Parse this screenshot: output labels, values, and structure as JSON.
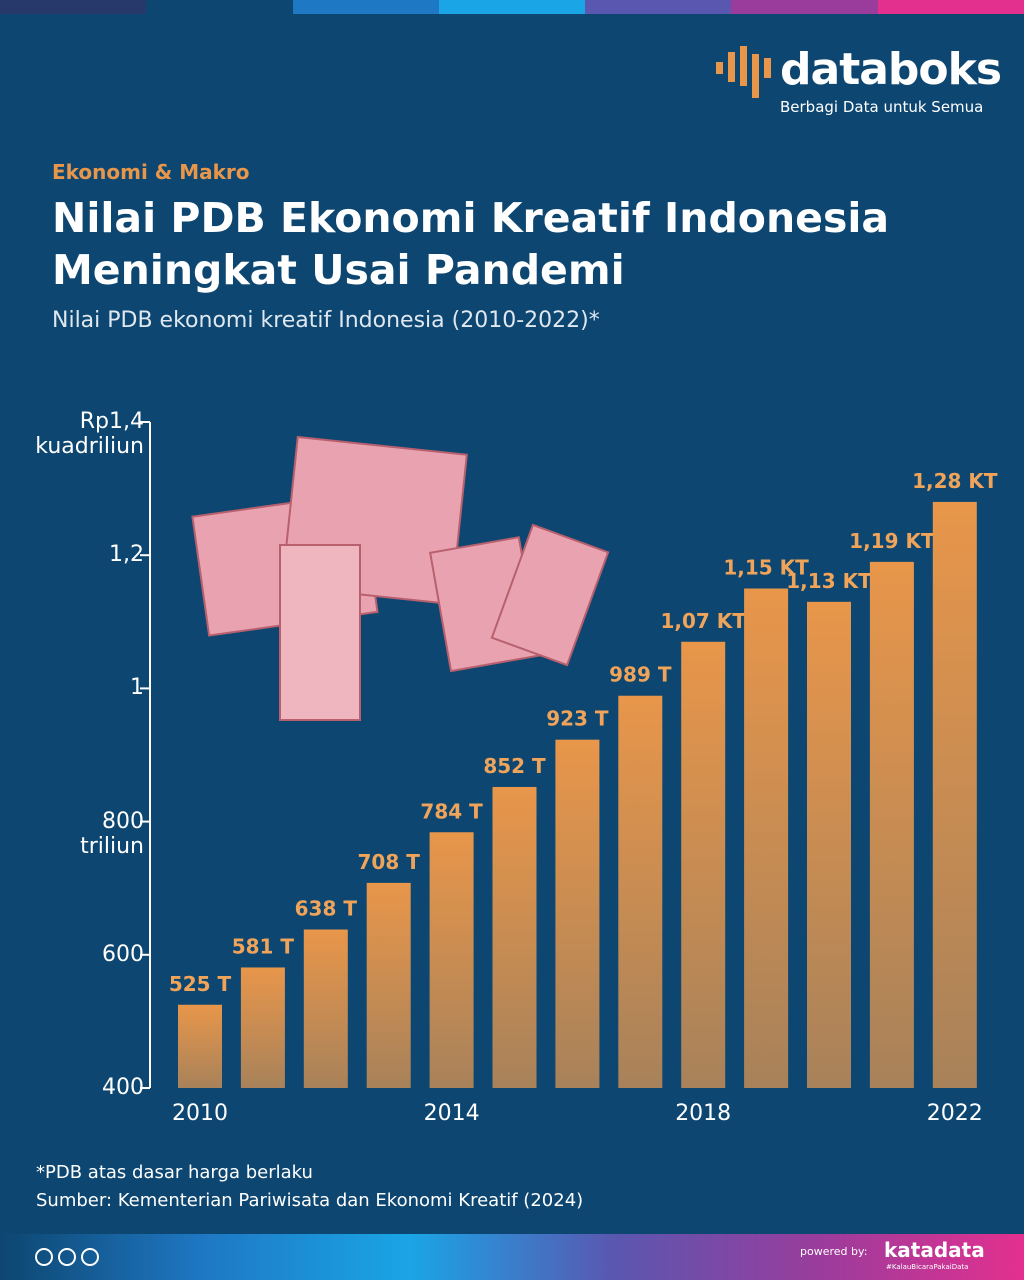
{
  "brand": {
    "name": "databoks",
    "tagline": "Berbagi Data untuk Semua"
  },
  "kicker": "Ekonomi & Makro",
  "chart_data": {
    "type": "bar",
    "title": "Nilai PDB Ekonomi Kreatif Indonesia Meningkat Usai Pandemi",
    "subtitle": "Nilai PDB ekonomi kreatif Indonesia (2010-2022)*",
    "categories": [
      "2010",
      null,
      null,
      null,
      "2014",
      null,
      null,
      null,
      "2018",
      null,
      null,
      null,
      "2022"
    ],
    "values": [
      525,
      581,
      638,
      708,
      784,
      852,
      923,
      989,
      1070,
      1150,
      1130,
      1190,
      1280
    ],
    "value_labels": [
      "525 T",
      "581 T",
      "638 T",
      "708 T",
      "784 T",
      "852 T",
      "923 T",
      "989 T",
      "1,07 KT",
      "1,15 KT",
      "1,13 KT",
      "1,19 KT",
      "1,28 KT"
    ],
    "color": "#e8964a",
    "ylim": [
      400,
      1400
    ],
    "yticks": [
      400,
      600,
      {
        "value": 800,
        "label": "800 triliun"
      },
      {
        "value": 1000,
        "label": "1"
      },
      {
        "value": 1200,
        "label": "1,2"
      },
      {
        "value": 1400,
        "label": "Rp1,4 kuadriliun"
      }
    ],
    "grid": false
  },
  "footer": {
    "note": "*PDB atas dasar harga berlaku",
    "source": "Sumber: Kementerian Pariwisata dan Ekonomi Kreatif (2024)",
    "powered_by": "powered by:",
    "publisher": "katadata",
    "hashtag": "#KalauBicaraPakaiData"
  }
}
